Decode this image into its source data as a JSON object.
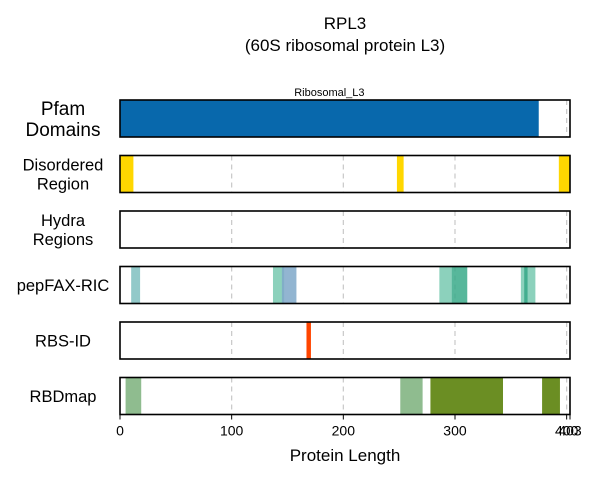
{
  "chart_data": {
    "type": "bar",
    "subtype": "protein-region-track",
    "title": "RPL3",
    "subtitle": "(60S ribosomal protein L3)",
    "xlabel": "Protein Length",
    "xlim": [
      0,
      403
    ],
    "xticks": [
      0,
      100,
      200,
      300,
      400,
      403
    ],
    "grid": true,
    "tracks": [
      {
        "label": "Pfam\nDomains",
        "regions": [
          {
            "start": 0,
            "end": 375,
            "color": "#0868ac",
            "label": "Ribosomal_L3"
          }
        ]
      },
      {
        "label": "Disordered\nRegion",
        "regions": [
          {
            "start": 0,
            "end": 12,
            "color": "#ffd700"
          },
          {
            "start": 248,
            "end": 254,
            "color": "#ffd700"
          },
          {
            "start": 393,
            "end": 403,
            "color": "#ffd700"
          }
        ]
      },
      {
        "label": "Hydra\nRegions",
        "regions": []
      },
      {
        "label": "pepFAX-RIC",
        "regions": [
          {
            "start": 10,
            "end": 18,
            "color": "#7fbfbf",
            "opacity": 0.85
          },
          {
            "start": 137,
            "end": 147,
            "color": "#66c2a5",
            "opacity": 0.75
          },
          {
            "start": 145,
            "end": 158,
            "color": "#7fa8c9",
            "opacity": 0.85
          },
          {
            "start": 286,
            "end": 297,
            "color": "#66c2a5",
            "opacity": 0.75
          },
          {
            "start": 297,
            "end": 311,
            "color": "#3aaa8a",
            "opacity": 0.85
          },
          {
            "start": 359,
            "end": 372,
            "color": "#66c2a5",
            "opacity": 0.75
          },
          {
            "start": 362,
            "end": 365,
            "color": "#3aaa8a",
            "opacity": 0.9
          }
        ]
      },
      {
        "label": "RBS-ID",
        "regions": [
          {
            "start": 167,
            "end": 171,
            "color": "#ff4500"
          }
        ]
      },
      {
        "label": "RBDmap",
        "regions": [
          {
            "start": 5,
            "end": 19,
            "color": "#8fbc8f"
          },
          {
            "start": 251,
            "end": 271,
            "color": "#8fbc8f"
          },
          {
            "start": 278,
            "end": 343,
            "color": "#6b8e23"
          },
          {
            "start": 378,
            "end": 394,
            "color": "#6b8e23"
          }
        ]
      }
    ]
  }
}
